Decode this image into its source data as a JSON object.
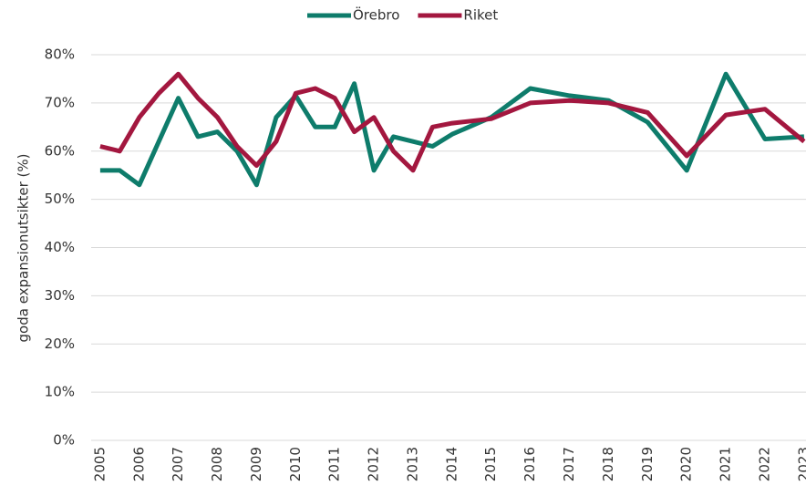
{
  "chart_data": {
    "type": "line",
    "y_label": "goda expansionutsikter (%)",
    "x": [
      2005,
      2005.5,
      2006,
      2006.5,
      2007,
      2007.5,
      2008,
      2008.5,
      2009,
      2009.5,
      2010,
      2010.5,
      2011,
      2011.5,
      2012,
      2012.5,
      2013,
      2013.5,
      2014,
      2015,
      2016,
      2017,
      2018,
      2019,
      2020,
      2021,
      2022,
      2023
    ],
    "series": [
      {
        "name": "Örebro",
        "color": "#0e7c6b",
        "values": [
          56,
          56,
          53,
          62,
          71,
          63,
          64,
          60,
          53,
          67,
          71.5,
          65,
          65,
          74,
          56,
          63,
          62,
          61,
          63.5,
          67,
          73,
          71.5,
          70.5,
          66,
          56,
          76,
          62.5,
          63
        ]
      },
      {
        "name": "Riket",
        "color": "#a3173f",
        "values": [
          61,
          60,
          67,
          72,
          76,
          71,
          67,
          61,
          57,
          62,
          72,
          73,
          71,
          64,
          67,
          60,
          56,
          65,
          65.8,
          66.7,
          70,
          70.5,
          70,
          68,
          59,
          67.5,
          68.7,
          62
        ]
      }
    ],
    "xlim": [
      2004.77,
      2023.05
    ],
    "xticks": [
      2005,
      2006,
      2007,
      2008,
      2009,
      2010,
      2011,
      2012,
      2013,
      2014,
      2015,
      2016,
      2017,
      2018,
      2019,
      2020,
      2021,
      2022,
      2023
    ],
    "ylim": [
      0,
      80
    ],
    "yticks": [
      {
        "value": 0,
        "label": "0%"
      },
      {
        "value": 10,
        "label": "10%"
      },
      {
        "value": 20,
        "label": "20%"
      },
      {
        "value": 30,
        "label": "30%"
      },
      {
        "value": 40,
        "label": "40%"
      },
      {
        "value": 50,
        "label": "50%"
      },
      {
        "value": 60,
        "label": "60%"
      },
      {
        "value": 70,
        "label": "70%"
      },
      {
        "value": 80,
        "label": "80%"
      }
    ],
    "grid": true,
    "legend": "top"
  }
}
